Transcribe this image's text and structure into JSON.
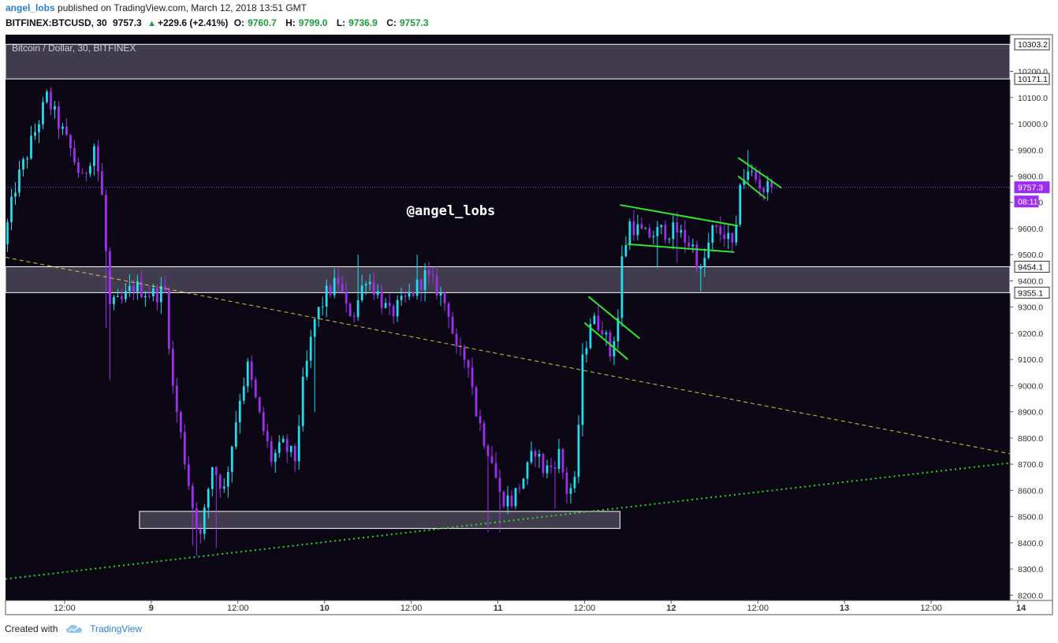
{
  "header": {
    "author": "angel_lobs",
    "published": "published on TradingView.com, March 12, 2018 13:51 GMT",
    "symbol": "BITFINEX:BTCUSD, 30",
    "last": "9757.3",
    "arrow": "▲",
    "change": "+229.6 (+2.41%)",
    "o_label": "O:",
    "o_value": "9760.7",
    "h_label": "H:",
    "h_value": "9799.0",
    "l_label": "L:",
    "l_value": "9736.9",
    "c_label": "C:",
    "c_value": "9757.3"
  },
  "footer": {
    "created_with": "Created with",
    "brand": "TradingView"
  },
  "colors": {
    "background": "#0b0614",
    "bull": "#1ee0f0",
    "bear": "#a22ff0",
    "zone_fill": "#4a4657",
    "pattern": "#2ee62e",
    "trend_dashed": "#d4c83a",
    "trend_dotted": "#22dd22",
    "price_line": "#9b4dff"
  },
  "chart_data": {
    "type": "candlestick",
    "title": "Bitcoin / Dollar, 30, BITFINEX",
    "watermark": "@angel_lobs",
    "ylim": [
      8180,
      10340
    ],
    "y_ticks": [
      "8200.0",
      "8300.0",
      "8400.0",
      "8500.0",
      "8600.0",
      "8700.0",
      "8800.0",
      "8900.0",
      "9000.0",
      "9100.0",
      "9200.0",
      "9300.0",
      "9400.0",
      "9500.0",
      "9600.0",
      "9700.0",
      "9800.0",
      "9900.0",
      "10000.0",
      "10100.0",
      "10200.0"
    ],
    "x_tick_labels": [
      "12:00",
      "9",
      "12:00",
      "10",
      "12:00",
      "11",
      "12:00",
      "12",
      "12:00",
      "13",
      "12:00",
      "14"
    ],
    "x_tick_bold": [
      false,
      true,
      false,
      true,
      false,
      true,
      false,
      true,
      false,
      true,
      false,
      true
    ],
    "time_range_bars": [
      0,
      255
    ],
    "x_ticks_bar": [
      15,
      37,
      59,
      81,
      103,
      125,
      147,
      169,
      191,
      213,
      235,
      257
    ],
    "price_labels": [
      {
        "text": "10303.2",
        "value": 10303.2,
        "style": "zone"
      },
      {
        "text": "10171.1",
        "value": 10171.1,
        "style": "zone"
      },
      {
        "text": "9454.1",
        "value": 9454.1,
        "style": "zone"
      },
      {
        "text": "9355.1",
        "value": 9355.1,
        "style": "zone"
      },
      {
        "text": "9757.3",
        "value": 9757.3,
        "style": "last"
      },
      {
        "text": "08:11",
        "value": 9757.3,
        "style": "timer"
      }
    ],
    "zones": [
      {
        "from_bar": 0,
        "to_bar": 255,
        "low": 10171.1,
        "high": 10303.2
      },
      {
        "from_bar": 0,
        "to_bar": 255,
        "low": 9355.1,
        "high": 9454.1
      },
      {
        "from_bar": 34,
        "to_bar": 156,
        "low": 8455,
        "high": 8520
      }
    ],
    "trendlines": [
      {
        "style": "dashed",
        "color": "#d4c83a",
        "x1": 0,
        "y1": 9490,
        "x2": 255,
        "y2": 8740
      },
      {
        "style": "dotted",
        "color": "#22dd22",
        "x1": 0,
        "y1": 8262,
        "x2": 255,
        "y2": 8705
      }
    ],
    "patterns": [
      {
        "x1": 147,
        "y1": 9240,
        "x2": 158,
        "y2": 9100
      },
      {
        "x1": 148,
        "y1": 9340,
        "x2": 161,
        "y2": 9180
      },
      {
        "x1": 156,
        "y1": 9690,
        "x2": 186,
        "y2": 9610
      },
      {
        "x1": 158,
        "y1": 9540,
        "x2": 185,
        "y2": 9510
      },
      {
        "x1": 186,
        "y1": 9870,
        "x2": 197,
        "y2": 9755
      },
      {
        "x1": 186,
        "y1": 9800,
        "x2": 193,
        "y2": 9715
      }
    ],
    "last_price": 9757.3,
    "path": [
      [
        0,
        9540
      ],
      [
        3,
        9760
      ],
      [
        8,
        9970
      ],
      [
        11,
        10100
      ],
      [
        14,
        10000
      ],
      [
        17,
        9900
      ],
      [
        20,
        9780
      ],
      [
        23,
        9920
      ],
      [
        25,
        9720
      ],
      [
        27,
        9300
      ],
      [
        30,
        9320
      ],
      [
        33,
        9380
      ],
      [
        36,
        9360
      ],
      [
        38,
        9350
      ],
      [
        41,
        9360
      ],
      [
        43,
        8990
      ],
      [
        46,
        8720
      ],
      [
        48,
        8540
      ],
      [
        50,
        8420
      ],
      [
        53,
        8700
      ],
      [
        56,
        8600
      ],
      [
        60,
        8960
      ],
      [
        62,
        9070
      ],
      [
        65,
        8880
      ],
      [
        68,
        8720
      ],
      [
        71,
        8770
      ],
      [
        74,
        8720
      ],
      [
        76,
        9000
      ],
      [
        79,
        9250
      ],
      [
        82,
        9350
      ],
      [
        85,
        9400
      ],
      [
        87,
        9290
      ],
      [
        89,
        9280
      ],
      [
        92,
        9420
      ],
      [
        95,
        9350
      ],
      [
        98,
        9270
      ],
      [
        101,
        9310
      ],
      [
        104,
        9360
      ],
      [
        107,
        9420
      ],
      [
        110,
        9370
      ],
      [
        113,
        9290
      ],
      [
        115,
        9120
      ],
      [
        118,
        9100
      ],
      [
        120,
        8900
      ],
      [
        122,
        8800
      ],
      [
        124,
        8720
      ],
      [
        126,
        8580
      ],
      [
        129,
        8560
      ],
      [
        131,
        8620
      ],
      [
        133,
        8680
      ],
      [
        135,
        8760
      ],
      [
        137,
        8680
      ],
      [
        139,
        8690
      ],
      [
        141,
        8740
      ],
      [
        143,
        8600
      ],
      [
        145,
        8620
      ],
      [
        147,
        9090
      ],
      [
        149,
        9250
      ],
      [
        152,
        9230
      ],
      [
        154,
        9120
      ],
      [
        156,
        9260
      ],
      [
        157,
        9480
      ],
      [
        159,
        9620
      ],
      [
        163,
        9570
      ],
      [
        167,
        9590
      ],
      [
        171,
        9590
      ],
      [
        175,
        9530
      ],
      [
        177,
        9430
      ],
      [
        180,
        9590
      ],
      [
        183,
        9580
      ],
      [
        185,
        9530
      ],
      [
        186,
        9580
      ],
      [
        187,
        9790
      ],
      [
        190,
        9810
      ],
      [
        193,
        9750
      ],
      [
        194,
        9757
      ]
    ],
    "spikes": [
      {
        "bar": 10,
        "value": 10110
      },
      {
        "bar": 25,
        "value": 9220
      },
      {
        "bar": 26,
        "value": 9020
      },
      {
        "bar": 47,
        "value": 8390
      },
      {
        "bar": 48,
        "value": 8350
      },
      {
        "bar": 53,
        "value": 8380
      },
      {
        "bar": 78,
        "value": 8900
      },
      {
        "bar": 89,
        "value": 9500
      },
      {
        "bar": 104,
        "value": 9500
      },
      {
        "bar": 122,
        "value": 8440
      },
      {
        "bar": 125,
        "value": 8440
      },
      {
        "bar": 139,
        "value": 8530
      },
      {
        "bar": 165,
        "value": 9450
      },
      {
        "bar": 170,
        "value": 9470
      },
      {
        "bar": 176,
        "value": 9360
      },
      {
        "bar": 182,
        "value": 9530
      },
      {
        "bar": 188,
        "value": 9900
      }
    ]
  }
}
